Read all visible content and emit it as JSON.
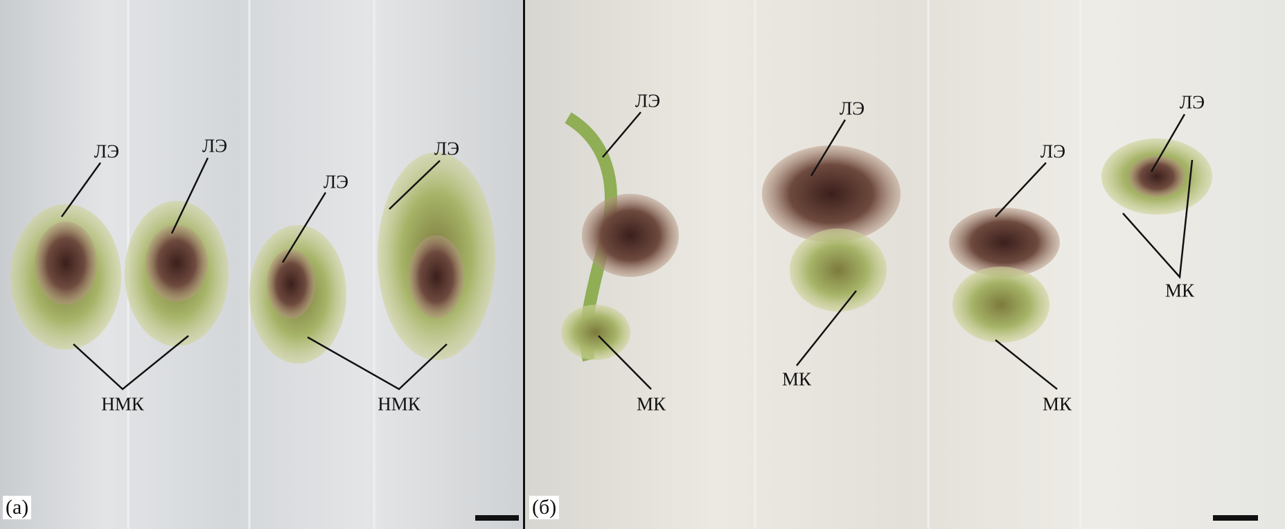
{
  "panels": [
    {
      "label": "(а)",
      "annotations": [
        "ЛЭ",
        "ЛЭ",
        "ЛЭ",
        "ЛЭ",
        "НМК",
        "НМК"
      ]
    },
    {
      "label": "(б)",
      "annotations": [
        "ЛЭ",
        "ЛЭ",
        "ЛЭ",
        "ЛЭ",
        "МК",
        "МК",
        "МК",
        "МК"
      ]
    }
  ],
  "colors": {
    "background_left": "#d6d8da",
    "background_right": "#e6e3dc",
    "callus_green": "#a9b86a",
    "callus_dark": "#4a2a24",
    "text": "#111111"
  }
}
